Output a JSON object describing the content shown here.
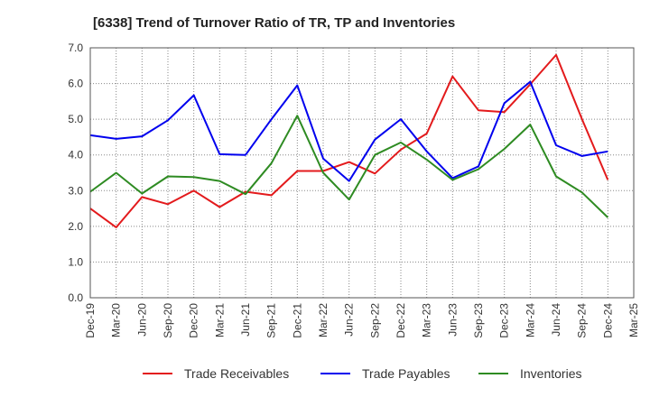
{
  "chart_data": {
    "type": "line",
    "title": "[6338]  Trend of Turnover Ratio of TR, TP and Inventories",
    "xlabel": "",
    "ylabel": "",
    "ylim": [
      0,
      7
    ],
    "y_ticks": [
      "0.0",
      "1.0",
      "2.0",
      "3.0",
      "4.0",
      "5.0",
      "6.0",
      "7.0"
    ],
    "grid": "dotted",
    "legend_position": "bottom",
    "categories": [
      "Dec-19",
      "Mar-20",
      "Jun-20",
      "Sep-20",
      "Dec-20",
      "Mar-21",
      "Jun-21",
      "Sep-21",
      "Dec-21",
      "Mar-22",
      "Jun-22",
      "Sep-22",
      "Dec-22",
      "Mar-23",
      "Jun-23",
      "Sep-23",
      "Dec-23",
      "Mar-24",
      "Jun-24",
      "Sep-24",
      "Dec-24",
      "Mar-25"
    ],
    "series": [
      {
        "name": "Trade Receivables",
        "color": "#e31a1c",
        "values": [
          2.5,
          1.97,
          2.82,
          2.62,
          3.0,
          2.54,
          2.97,
          2.87,
          3.55,
          3.55,
          3.8,
          3.48,
          4.15,
          4.6,
          6.2,
          5.25,
          5.2,
          5.98,
          6.8,
          5.0,
          3.3,
          null
        ]
      },
      {
        "name": "Trade Payables",
        "color": "#0000ee",
        "values": [
          4.55,
          4.45,
          4.52,
          4.97,
          5.67,
          4.02,
          4.0,
          5.0,
          5.95,
          3.9,
          3.27,
          4.43,
          5.0,
          4.1,
          3.35,
          3.68,
          5.45,
          6.05,
          4.27,
          3.97,
          4.1,
          null
        ]
      },
      {
        "name": "Inventories",
        "color": "#2e8b22",
        "values": [
          2.97,
          3.5,
          2.92,
          3.4,
          3.38,
          3.27,
          2.9,
          3.77,
          5.1,
          3.5,
          2.75,
          4.0,
          4.35,
          3.87,
          3.3,
          3.6,
          4.17,
          4.85,
          3.4,
          2.95,
          2.25,
          null
        ]
      }
    ]
  }
}
